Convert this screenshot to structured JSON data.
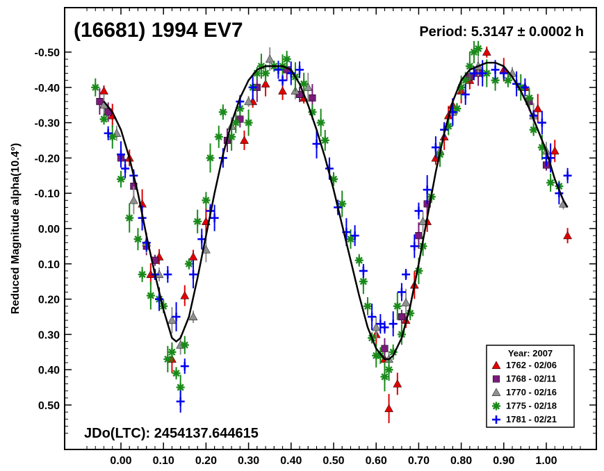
{
  "chart_data": {
    "type": "scatter",
    "title": "(16681) 1994 EV7",
    "period_text": "Period: 5.3147 ± 0.0002 h",
    "epoch_text": "JDo(LTC): 2454137.644615",
    "ylabel": "Reduced Magnitude alpha(10.4°)",
    "xlabel": "",
    "xlim": [
      -0.13,
      1.12
    ],
    "ylim": [
      -0.6,
      0.63
    ],
    "y_inverted": true,
    "grid": false,
    "x_ticks": [
      "0.00",
      "0.10",
      "0.20",
      "0.30",
      "0.40",
      "0.50",
      "0.60",
      "0.70",
      "0.80",
      "0.90",
      "1.00"
    ],
    "y_ticks": [
      "-0.50",
      "-0.40",
      "-0.30",
      "-0.20",
      "-0.10",
      "0.00",
      "0.10",
      "0.20",
      "0.30",
      "0.40",
      "0.50"
    ],
    "legend": {
      "title": "Year: 2007",
      "placement": "bottom-right",
      "entries": [
        {
          "label": "1762 - 02/06",
          "marker": "triangle",
          "color": "#e00000"
        },
        {
          "label": "1768 - 02/11",
          "marker": "square",
          "color": "#7a1a7a"
        },
        {
          "label": "1770 - 02/16",
          "marker": "triangle",
          "color": "#909090"
        },
        {
          "label": "1775 - 02/18",
          "marker": "asterisk",
          "color": "#1a8a1a"
        },
        {
          "label": "1781 - 02/21",
          "marker": "plus",
          "color": "#0000ee"
        }
      ]
    },
    "fit_curve": {
      "x": [
        -0.04,
        -0.02,
        0.0,
        0.02,
        0.04,
        0.06,
        0.08,
        0.1,
        0.12,
        0.13,
        0.14,
        0.16,
        0.18,
        0.2,
        0.22,
        0.24,
        0.26,
        0.28,
        0.3,
        0.32,
        0.34,
        0.36,
        0.38,
        0.4,
        0.42,
        0.44,
        0.46,
        0.48,
        0.5,
        0.52,
        0.54,
        0.56,
        0.58,
        0.6,
        0.62,
        0.63,
        0.64,
        0.66,
        0.68,
        0.7,
        0.72,
        0.74,
        0.76,
        0.78,
        0.8,
        0.82,
        0.84,
        0.86,
        0.88,
        0.9,
        0.92,
        0.94,
        0.96,
        0.98,
        1.0,
        1.02,
        1.04,
        1.05
      ],
      "y": [
        -0.36,
        -0.33,
        -0.28,
        -0.2,
        -0.1,
        0.02,
        0.13,
        0.23,
        0.31,
        0.32,
        0.31,
        0.25,
        0.14,
        0.02,
        -0.1,
        -0.21,
        -0.3,
        -0.37,
        -0.42,
        -0.45,
        -0.46,
        -0.46,
        -0.46,
        -0.45,
        -0.41,
        -0.35,
        -0.28,
        -0.2,
        -0.11,
        -0.01,
        0.09,
        0.19,
        0.28,
        0.34,
        0.37,
        0.37,
        0.36,
        0.31,
        0.22,
        0.1,
        -0.03,
        -0.16,
        -0.27,
        -0.36,
        -0.42,
        -0.45,
        -0.46,
        -0.47,
        -0.47,
        -0.46,
        -0.43,
        -0.39,
        -0.34,
        -0.28,
        -0.22,
        -0.14,
        -0.08,
        -0.06
      ]
    },
    "series": [
      {
        "name": "1762 - 02/06",
        "marker": "triangle",
        "color": "#e00000",
        "x": [
          -0.04,
          -0.02,
          0.02,
          0.05,
          0.07,
          0.09,
          0.12,
          0.15,
          0.17,
          0.2,
          0.29,
          0.31,
          0.34,
          0.38,
          0.43,
          0.6,
          0.62,
          0.63,
          0.65,
          0.67,
          0.69,
          0.72,
          0.74,
          0.76,
          0.77,
          0.78,
          0.8,
          0.82,
          0.86,
          0.9,
          0.95,
          0.98,
          1.02,
          1.05
        ],
        "y": [
          -0.39,
          -0.32,
          -0.2,
          -0.07,
          0.13,
          0.08,
          0.37,
          0.19,
          0.08,
          -0.02,
          -0.25,
          -0.36,
          -0.41,
          -0.39,
          -0.37,
          0.3,
          0.37,
          0.51,
          0.44,
          0.26,
          0.16,
          -0.02,
          -0.2,
          -0.26,
          -0.32,
          -0.35,
          -0.39,
          -0.42,
          -0.5,
          -0.45,
          -0.4,
          -0.34,
          -0.22,
          0.02
        ]
      },
      {
        "name": "1768 - 02/11",
        "marker": "square",
        "color": "#7a1a7a",
        "x": [
          -0.05,
          -0.03,
          0.0,
          0.03,
          0.06,
          0.08,
          0.25,
          0.28,
          0.32,
          0.39,
          0.42,
          0.45,
          0.62,
          0.66,
          0.7,
          0.72,
          0.82,
          0.84,
          0.96,
          1.0
        ],
        "y": [
          -0.36,
          -0.33,
          -0.2,
          -0.12,
          0.05,
          0.09,
          -0.25,
          -0.31,
          -0.4,
          -0.45,
          -0.38,
          -0.37,
          0.34,
          0.25,
          0.02,
          -0.07,
          -0.43,
          -0.44,
          -0.36,
          -0.18
        ]
      },
      {
        "name": "1770 - 02/16",
        "marker": "triangle",
        "color": "#909090",
        "x": [
          -0.04,
          -0.01,
          0.03,
          0.06,
          0.09,
          0.12,
          0.14,
          0.17,
          0.2,
          0.26,
          0.3,
          0.35,
          0.41,
          0.44,
          0.6,
          0.63,
          0.67,
          0.71,
          0.75,
          0.78,
          0.84,
          0.92,
          0.97,
          1.0,
          1.04
        ],
        "y": [
          -0.35,
          -0.27,
          -0.08,
          0.04,
          0.13,
          0.26,
          0.33,
          0.25,
          0.06,
          -0.29,
          -0.36,
          -0.48,
          -0.39,
          -0.4,
          0.28,
          0.37,
          0.21,
          -0.02,
          -0.22,
          -0.33,
          -0.46,
          -0.44,
          -0.32,
          -0.22,
          -0.07
        ]
      },
      {
        "name": "1775 - 02/18",
        "marker": "asterisk",
        "color": "#1a8a1a",
        "x": [
          -0.06,
          -0.04,
          -0.02,
          0.0,
          0.02,
          0.04,
          0.05,
          0.07,
          0.09,
          0.1,
          0.11,
          0.12,
          0.13,
          0.14,
          0.15,
          0.16,
          0.18,
          0.2,
          0.21,
          0.23,
          0.24,
          0.26,
          0.27,
          0.28,
          0.3,
          0.31,
          0.32,
          0.33,
          0.34,
          0.36,
          0.38,
          0.39,
          0.41,
          0.43,
          0.45,
          0.47,
          0.48,
          0.5,
          0.52,
          0.54,
          0.56,
          0.57,
          0.58,
          0.59,
          0.6,
          0.61,
          0.62,
          0.63,
          0.64,
          0.65,
          0.66,
          0.68,
          0.7,
          0.71,
          0.73,
          0.75,
          0.77,
          0.79,
          0.8,
          0.81,
          0.82,
          0.83,
          0.84,
          0.86,
          0.88,
          0.91,
          0.94,
          0.96,
          0.97,
          0.99,
          1.01,
          1.03
        ],
        "y": [
          -0.4,
          -0.31,
          -0.26,
          -0.14,
          -0.03,
          0.03,
          0.13,
          0.19,
          0.2,
          0.22,
          0.37,
          0.35,
          0.41,
          0.45,
          0.33,
          0.1,
          -0.02,
          -0.08,
          -0.2,
          -0.26,
          -0.33,
          -0.26,
          -0.3,
          -0.34,
          -0.3,
          -0.4,
          -0.44,
          -0.46,
          -0.44,
          -0.46,
          -0.46,
          -0.48,
          -0.43,
          -0.41,
          -0.33,
          -0.3,
          -0.25,
          -0.14,
          -0.07,
          0.03,
          0.09,
          0.15,
          0.22,
          0.31,
          0.36,
          0.36,
          0.42,
          0.4,
          0.35,
          0.22,
          0.3,
          0.24,
          0.12,
          0.05,
          -0.09,
          -0.21,
          -0.29,
          -0.34,
          -0.4,
          -0.42,
          -0.46,
          -0.5,
          -0.51,
          -0.44,
          -0.42,
          -0.42,
          -0.4,
          -0.37,
          -0.28,
          -0.23,
          -0.13,
          -0.12
        ]
      },
      {
        "name": "1781 - 02/21",
        "marker": "plus",
        "color": "#0000ee",
        "x": [
          -0.03,
          0.0,
          0.01,
          0.03,
          0.05,
          0.06,
          0.08,
          0.09,
          0.11,
          0.13,
          0.14,
          0.15,
          0.17,
          0.19,
          0.21,
          0.22,
          0.24,
          0.28,
          0.31,
          0.37,
          0.38,
          0.4,
          0.42,
          0.46,
          0.49,
          0.51,
          0.53,
          0.55,
          0.57,
          0.59,
          0.61,
          0.62,
          0.64,
          0.66,
          0.67,
          0.69,
          0.7,
          0.72,
          0.74,
          0.76,
          0.78,
          0.81,
          0.83,
          0.85,
          0.88,
          0.9,
          0.93,
          0.95,
          0.97,
          0.99,
          1.0,
          1.01,
          1.03,
          1.05
        ],
        "y": [
          -0.27,
          -0.21,
          -0.17,
          -0.15,
          -0.03,
          0.04,
          0.13,
          0.2,
          0.13,
          0.25,
          0.49,
          0.39,
          0.13,
          0.03,
          -0.05,
          -0.03,
          -0.2,
          -0.36,
          -0.4,
          -0.45,
          -0.42,
          -0.44,
          -0.45,
          -0.24,
          -0.17,
          -0.06,
          0.01,
          0.02,
          0.12,
          0.25,
          0.27,
          0.28,
          0.27,
          0.18,
          0.13,
          0.05,
          -0.05,
          -0.11,
          -0.23,
          -0.28,
          -0.33,
          -0.38,
          -0.44,
          -0.44,
          -0.45,
          -0.44,
          -0.41,
          -0.4,
          -0.32,
          -0.3,
          -0.2,
          -0.2,
          -0.1,
          -0.15
        ]
      }
    ]
  }
}
